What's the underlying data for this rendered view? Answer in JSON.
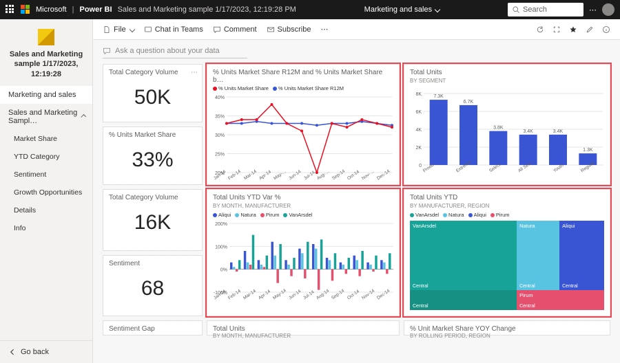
{
  "topbar": {
    "brand1": "Microsoft",
    "brand2": "Power BI",
    "doc_title": "Sales and Marketing sample 1/17/2023, 12:19:28 PM",
    "dropdown": "Marketing and sales",
    "search_placeholder": "Search",
    "more": "⋯"
  },
  "actionbar": {
    "file": "File",
    "chat": "Chat in Teams",
    "comment": "Comment",
    "subscribe": "Subscribe",
    "more": "⋯"
  },
  "sidebar": {
    "app_title": "Sales and Marketing sample 1/17/2023, 12:19:28",
    "items": [
      {
        "label": "Marketing and sales",
        "active": true
      },
      {
        "label": "Sales and Marketing Sampl…",
        "expandable": true
      }
    ],
    "subitems": [
      "Market Share",
      "YTD Category",
      "Sentiment",
      "Growth Opportunities",
      "Details",
      "Info"
    ],
    "goback": "Go back"
  },
  "qna": "Ask a question about your data",
  "tiles": {
    "tcv1": {
      "title": "Total Category Volume",
      "value": "50K"
    },
    "ums": {
      "title": "% Units Market Share",
      "value": "33%"
    },
    "tcv2": {
      "title": "Total Category Volume",
      "value": "16K"
    },
    "sent": {
      "title": "Sentiment",
      "value": "68"
    },
    "sgap": {
      "title": "Sentiment Gap"
    },
    "line": {
      "title": "% Units Market Share R12M and % Units Market Share b…",
      "legend": [
        {
          "label": "% Units Market Share",
          "color": "#e81123"
        },
        {
          "label": "% Units Market Share R12M",
          "color": "#3955d3"
        }
      ],
      "ylim": [
        20,
        40
      ],
      "yticks": [
        20,
        25,
        30,
        35,
        40
      ],
      "months": [
        "Jan-14",
        "Feb-14",
        "Mar-14",
        "Apr-14",
        "May-…",
        "Jun-14",
        "Jul-14",
        "Aug-…",
        "Sep-14",
        "Oct-14",
        "Nov-…",
        "Dec-14"
      ],
      "series_red": [
        33,
        34,
        34,
        38,
        33,
        31,
        20,
        33,
        32,
        34,
        33,
        32
      ],
      "series_blue": [
        33,
        33,
        33.5,
        33,
        33,
        33,
        32.5,
        33,
        33,
        33.5,
        33,
        32.5
      ],
      "grid_color": "#e6e6e6"
    },
    "bar": {
      "title": "Total Units",
      "sub": "BY SEGMENT",
      "ylim": [
        0,
        8000
      ],
      "yticks": [
        "0",
        "2K",
        "4K",
        "6K",
        "8K"
      ],
      "categories": [
        "Produ…",
        "Extreme",
        "Select",
        "All Sea…",
        "Youth",
        "Regular"
      ],
      "values": [
        7300,
        6700,
        3800,
        3400,
        3400,
        1300
      ],
      "value_labels": [
        "7.3K",
        "6.7K",
        "3.8K",
        "3.4K",
        "3.4K",
        "1.3K"
      ],
      "bar_color": "#3955d3",
      "grid_color": "#e6e6e6"
    },
    "ytdvar": {
      "title": "Total Units YTD Var %",
      "sub": "BY MONTH, MANUFACTURER",
      "legend": [
        {
          "label": "Aliqui",
          "color": "#3955d3"
        },
        {
          "label": "Natura",
          "color": "#59c3e2"
        },
        {
          "label": "Pirum",
          "color": "#e5506f"
        },
        {
          "label": "VanArsdel",
          "color": "#17a398"
        }
      ],
      "ylim": [
        -100,
        200
      ],
      "yticks": [
        "-100%",
        "0%",
        "100%",
        "200%"
      ],
      "months": [
        "Jan-14",
        "Feb-14",
        "Mar-14",
        "Apr-14",
        "May-14",
        "Jun-14",
        "Jul-14",
        "Aug-14",
        "Sep-14",
        "Oct-14",
        "Nov-14",
        "Dec-14"
      ],
      "data": {
        "Aliqui": [
          30,
          80,
          40,
          120,
          40,
          90,
          110,
          50,
          30,
          60,
          30,
          40
        ],
        "Natura": [
          10,
          30,
          20,
          60,
          20,
          70,
          90,
          40,
          20,
          40,
          20,
          30
        ],
        "Pirum": [
          -10,
          20,
          10,
          -60,
          -30,
          -40,
          -90,
          -50,
          -20,
          -30,
          -10,
          -20
        ],
        "VanArsdel": [
          40,
          150,
          60,
          110,
          50,
          120,
          130,
          70,
          50,
          80,
          60,
          70
        ]
      },
      "grid_color": "#e6e6e6"
    },
    "tuytd": {
      "title": "Total Units YTD",
      "sub": "BY MANUFACTURER, REGION",
      "legend": [
        {
          "label": "VanArsdel",
          "color": "#17a398"
        },
        {
          "label": "Natura",
          "color": "#59c3e2"
        },
        {
          "label": "Aliqui",
          "color": "#3955d3"
        },
        {
          "label": "Pirum",
          "color": "#e5506f"
        }
      ],
      "cells": {
        "vanarsdel": "VanArsdel",
        "natura": "Natura",
        "aliqui": "Aliqui",
        "central": "Central",
        "pirum": "Pirum"
      }
    },
    "tu_bottom": {
      "title": "Total Units",
      "sub": "BY MONTH, MANUFACTURER"
    },
    "yoy": {
      "title": "% Unit Market Share YOY Change",
      "sub": "BY ROLLING PERIOD, REGION"
    }
  },
  "colors": {
    "accent": "#f2c811",
    "bg": "#f7f7f7"
  }
}
